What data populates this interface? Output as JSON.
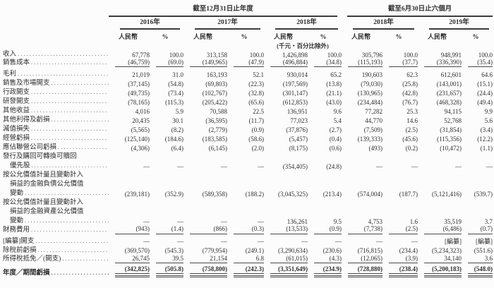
{
  "page": {
    "background": "#fcfcfc",
    "text_color": "#2e2e2e",
    "rule_color": "#4a4a4a"
  },
  "table": {
    "header": {
      "period_groups": [
        {
          "label": "截至12月31日止年度",
          "year_span": 3
        },
        {
          "label": "截至6月30日止六個月",
          "year_span": 2
        }
      ],
      "years": [
        "2016年",
        "2017年",
        "2018年",
        "2018年",
        "2019年"
      ],
      "currency_label": "人民幣",
      "percent_label": "%",
      "unit_note": "(千元‧百分比除外)"
    },
    "rows": [
      {
        "label": "收入",
        "dots": true,
        "values": [
          "67,778",
          "100.0",
          "313,158",
          "100.0",
          "1,426,898",
          "100.0",
          "305,796",
          "100.0",
          "948,991",
          "100.0"
        ]
      },
      {
        "label": "銷售成本",
        "dots": true,
        "rule": "u",
        "values": [
          "(46,759)",
          "(69.0)",
          "(149,965)",
          "(47.9)",
          "(496,884)",
          "(34.8)",
          "(115,193)",
          "(37.7)",
          "(336,390)",
          "(35.4)"
        ]
      },
      {
        "label": "毛利",
        "dots": true,
        "values": [
          "21,019",
          "31.0",
          "163,193",
          "52.1",
          "930,014",
          "65.2",
          "190,603",
          "62.3",
          "612,601",
          "64.6"
        ]
      },
      {
        "label": "銷售及市場開支",
        "dots": true,
        "values": [
          "(37,145)",
          "(54.8)",
          "(69,803)",
          "(22.3)",
          "(197,569)",
          "(13.8)",
          "(79,030)",
          "(25.8)",
          "(143,001)",
          "(15.1)"
        ]
      },
      {
        "label": "行政開支",
        "dots": true,
        "values": [
          "(49,735)",
          "(73.4)",
          "(102,767)",
          "(32.8)",
          "(301,147)",
          "(21.1)",
          "(130,965)",
          "(42.8)",
          "(231,657)",
          "(24.4)"
        ]
      },
      {
        "label": "研發開支",
        "dots": true,
        "values": [
          "(78,165)",
          "(115.3)",
          "(205,422)",
          "(65.6)",
          "(612,853)",
          "(43.0)",
          "(234,484)",
          "(76.7)",
          "(468,328)",
          "(49.4)"
        ]
      },
      {
        "label": "其他收益",
        "dots": true,
        "values": [
          "4,016",
          "5.9",
          "70,588",
          "22.5",
          "136,951",
          "9.6",
          "77,282",
          "25.3",
          "94,115",
          "9.9"
        ]
      },
      {
        "label": "其他利得及虧損",
        "dots": true,
        "values": [
          "20,435",
          "30.1",
          "(36,595)",
          "(11.7)",
          "77,023",
          "5.4",
          "44,770",
          "14.6",
          "52,768",
          "5.6"
        ]
      },
      {
        "label": "減值損失",
        "dots": true,
        "values": [
          "(5,565)",
          "(8.2)",
          "(2,779)",
          "(0.9)",
          "(37,876)",
          "(2.7)",
          "(7,509)",
          "(2.5)",
          "(31,854)",
          "(3.4)"
        ]
      },
      {
        "label": "經營虧損",
        "dots": true,
        "values": [
          "(125,140)",
          "(184.6)",
          "(183,585)",
          "(58.6)",
          "(5,457)",
          "(0.4)",
          "(139,333)",
          "(45.6)",
          "(115,356)",
          "(12.2)"
        ]
      },
      {
        "label": "應佔聯營公司虧損",
        "dots": true,
        "values": [
          "(4,306)",
          "(6.4)",
          "(6,145)",
          "(2.0)",
          "(8,175)",
          "(0.6)",
          "(493)",
          "(0.2)",
          "(10,472)",
          "(1.1)"
        ]
      },
      {
        "label": "發行及購回可轉換可贖回",
        "dots": false,
        "values": null
      },
      {
        "label": "優先股",
        "indent": 1,
        "dots": true,
        "values": [
          "—",
          "—",
          "—",
          "—",
          "(354,405)",
          "(24.8)",
          "—",
          "—",
          "—",
          "—"
        ]
      },
      {
        "label": "按公允價值計量且變動計入",
        "dots": false,
        "values": null
      },
      {
        "label": "損益的金融負債公允價值",
        "indent": 1,
        "dots": false,
        "values": null
      },
      {
        "label": "變動",
        "indent": 1,
        "dots": true,
        "values": [
          "(239,181)",
          "(352.9)",
          "(589,358)",
          "(188.2)",
          "(3,045,325)",
          "(213.4)",
          "(574,004)",
          "(187.7)",
          "(5,121,416)",
          "(539.7)"
        ]
      },
      {
        "label": "按公允價值計量且變動計入",
        "dots": false,
        "values": null
      },
      {
        "label": "損益的金融資產公允價值",
        "indent": 1,
        "dots": false,
        "values": null
      },
      {
        "label": "變動",
        "indent": 1,
        "dots": true,
        "values": [
          "—",
          "—",
          "—",
          "—",
          "136,261",
          "9.5",
          "4,753",
          "1.6",
          "35,519",
          "3.7"
        ]
      },
      {
        "label": "財務費用",
        "dots": true,
        "rule": "u",
        "values": [
          "(943)",
          "(1.4)",
          "(866)",
          "(0.3)",
          "(13,533)",
          "(0.9)",
          "(7,738)",
          "(2.5)",
          "(6,486)",
          "(0.7)"
        ]
      },
      {
        "label": "[編纂]開支",
        "dots": true,
        "values": [
          "—",
          "—",
          "—",
          "—",
          "—",
          "—",
          "—",
          "—",
          "[編纂]",
          "[編纂]"
        ]
      },
      {
        "label": "除稅前虧損",
        "dots": true,
        "values": [
          "(369,570)",
          "(545.3)",
          "(779,954)",
          "(249.1)",
          "(3,290,634)",
          "(230.6)",
          "(716,815)",
          "(234.4)",
          "(5,234,323)",
          "(551.6)"
        ]
      },
      {
        "label": "所得稅抵免／(開支)",
        "dots": true,
        "rule": "u",
        "values": [
          "26,745",
          "39.5",
          "21,154",
          "6.8",
          "(61,015)",
          "(4.3)",
          "(12,065)",
          "(3.9)",
          "34,140",
          "3.6"
        ]
      },
      {
        "label": "年度／期間虧損",
        "dots": true,
        "bold": true,
        "rule": "uu",
        "values": [
          "(342,825)",
          "(505.8)",
          "(758,800)",
          "(242.3)",
          "(3,351,649)",
          "(234.9)",
          "(728,880)",
          "(238.4)",
          "(5,200,183)",
          "(548.0)"
        ]
      }
    ]
  }
}
